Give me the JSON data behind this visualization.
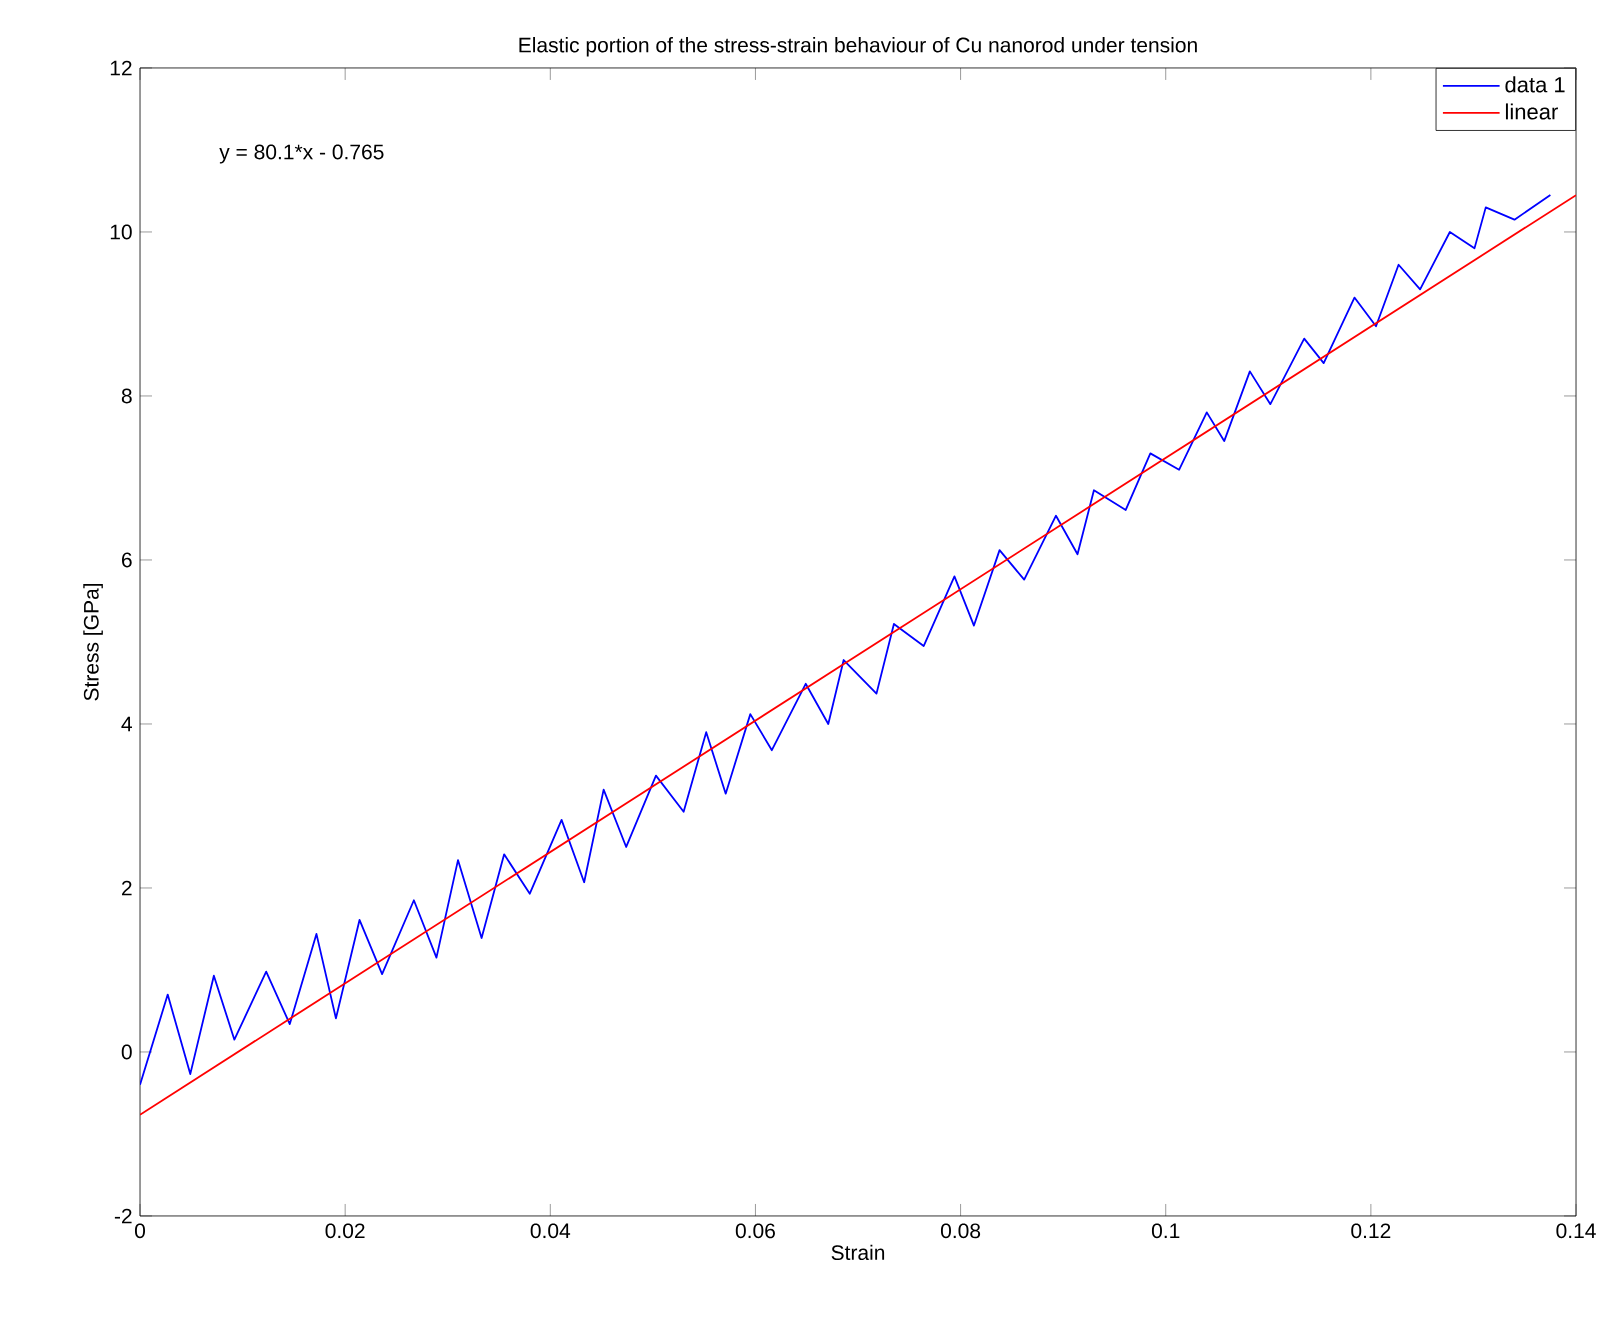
{
  "chart_data": {
    "type": "line",
    "title": "Elastic portion of the stress-strain behaviour of Cu nanorod under tension",
    "xlabel": "Strain",
    "ylabel": "Stress [GPa]",
    "annotations": [
      "y = 80.1*x - 0.765"
    ],
    "series": [
      {
        "name": "data 1",
        "color": "#0000ff",
        "x": [
          0,
          0.0027,
          0.0049,
          0.0072,
          0.0092,
          0.0123,
          0.0146,
          0.0172,
          0.0191,
          0.0214,
          0.0236,
          0.0267,
          0.0289,
          0.031,
          0.0333,
          0.0355,
          0.038,
          0.0411,
          0.0433,
          0.0452,
          0.0474,
          0.0503,
          0.053,
          0.0552,
          0.0571,
          0.0595,
          0.0616,
          0.0649,
          0.0671,
          0.0686,
          0.0718,
          0.0735,
          0.0764,
          0.0794,
          0.0813,
          0.0838,
          0.0862,
          0.0893,
          0.0914,
          0.093,
          0.0961,
          0.0985,
          0.1013,
          0.104,
          0.1057,
          0.1082,
          0.1102,
          0.1135,
          0.1154,
          0.1184,
          0.1205,
          0.1227,
          0.1248,
          0.1277,
          0.1301,
          0.1312,
          0.134,
          0.1375
        ],
        "values": [
          -0.4,
          0.7,
          -0.27,
          0.93,
          0.15,
          0.98,
          0.34,
          1.44,
          0.41,
          1.61,
          0.95,
          1.85,
          1.15,
          2.34,
          1.39,
          2.41,
          1.93,
          2.83,
          2.07,
          3.2,
          2.5,
          3.37,
          2.93,
          3.9,
          3.15,
          4.12,
          3.68,
          4.49,
          4.0,
          4.78,
          4.37,
          5.22,
          4.95,
          5.8,
          5.2,
          6.12,
          5.76,
          6.54,
          6.07,
          6.85,
          6.61,
          7.3,
          7.1,
          7.8,
          7.45,
          8.3,
          7.9,
          8.7,
          8.4,
          9.2,
          8.85,
          9.6,
          9.3,
          10.0,
          9.8,
          10.3,
          10.15,
          10.45
        ]
      },
      {
        "name": "linear",
        "color": "#ff0000",
        "x": [
          0,
          0.14
        ],
        "values": [
          -0.765,
          10.449
        ]
      }
    ],
    "xlim": [
      0,
      0.14
    ],
    "ylim": [
      -2,
      12
    ],
    "xticks": [
      0,
      0.02,
      0.04,
      0.06,
      0.08,
      0.1,
      0.12,
      0.14
    ],
    "yticks": [
      -2,
      0,
      2,
      4,
      6,
      8,
      10,
      12
    ],
    "grid": false,
    "legend": "top right",
    "marker": "none",
    "line_style": "solid"
  }
}
